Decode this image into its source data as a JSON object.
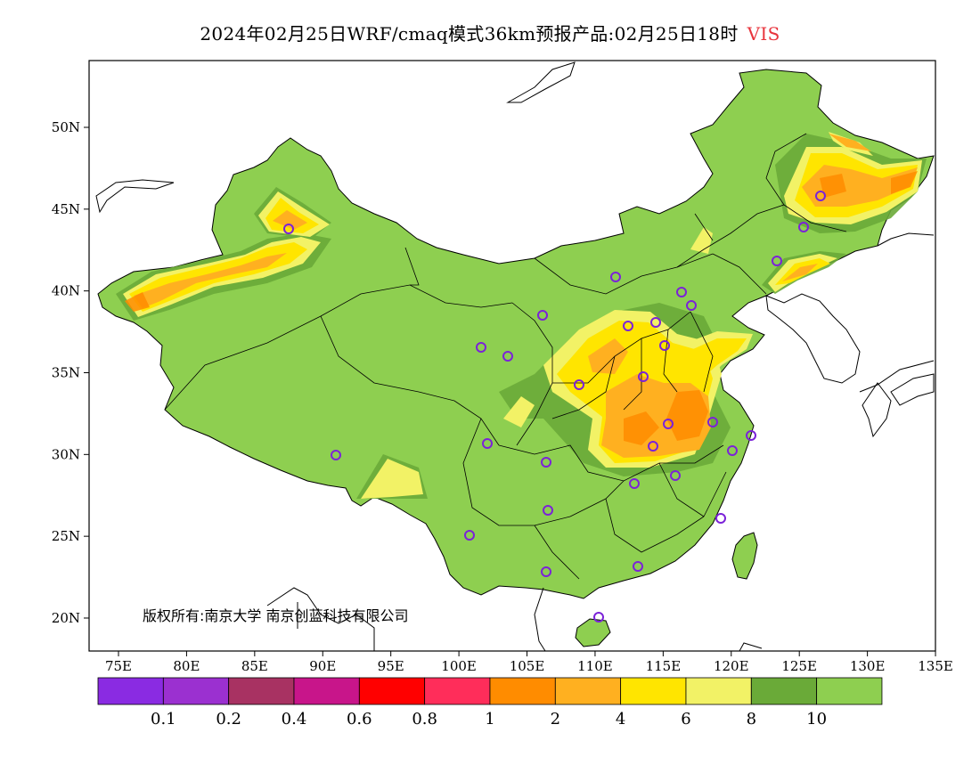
{
  "title": {
    "main": "2024年02月25日WRF/cmaq模式36km预报产品:02月25日18时",
    "variable": "VIS"
  },
  "copyright": "版权所有:南京大学 南京创蓝科技有限公司",
  "axes": {
    "lon_ticks": [
      "75E",
      "80E",
      "85E",
      "90E",
      "95E",
      "100E",
      "105E",
      "110E",
      "115E",
      "120E",
      "125E",
      "130E",
      "135E"
    ],
    "lat_ticks": [
      "50N",
      "45N",
      "40N",
      "35N",
      "30N",
      "25N",
      "20N"
    ]
  },
  "legend": {
    "bins": [
      {
        "color": "#8a2be2"
      },
      {
        "color": "#9b30d0"
      },
      {
        "color": "#a83262"
      },
      {
        "color": "#c8158a"
      },
      {
        "color": "#ff0000"
      },
      {
        "color": "#ff2d5a"
      },
      {
        "color": "#ff8c00"
      },
      {
        "color": "#ffb020"
      },
      {
        "color": "#ffe500"
      },
      {
        "color": "#f2f266"
      },
      {
        "color": "#6aaa38"
      },
      {
        "color": "#8ecf50"
      }
    ],
    "labels": [
      "0.1",
      "0.2",
      "0.4",
      "0.6",
      "0.8",
      "1",
      "2",
      "4",
      "6",
      "8",
      "10"
    ]
  },
  "map": {
    "lon_range": [
      73,
      135
    ],
    "lat_range": [
      18,
      54
    ],
    "station_marker_color": "#7b22d8"
  }
}
